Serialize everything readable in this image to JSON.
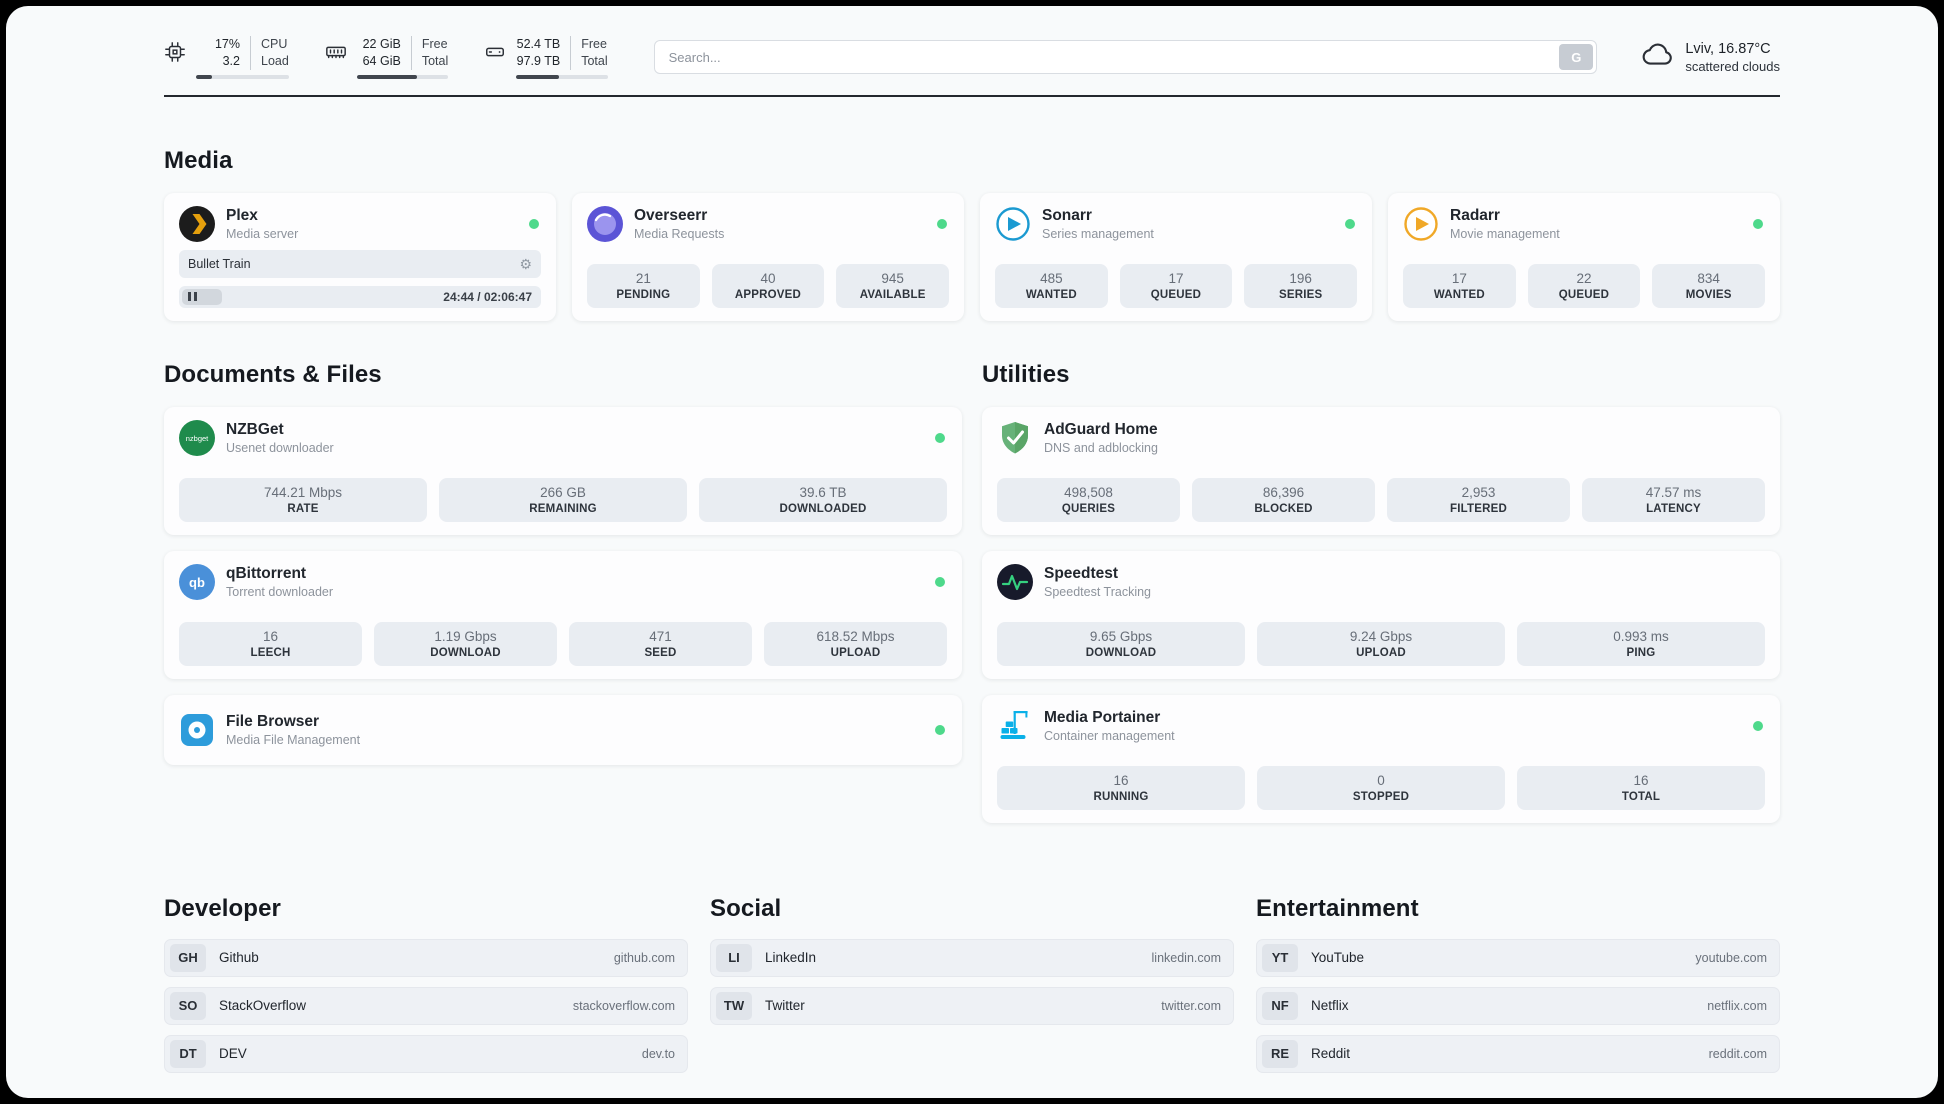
{
  "topbar": {
    "cpu": {
      "value": "17%",
      "value2": "3.2",
      "label": "CPU",
      "label2": "Load",
      "progress": 17
    },
    "memory": {
      "value": "22 GiB",
      "value2": "64 GiB",
      "label": "Free",
      "label2": "Total",
      "progress": 66
    },
    "disk": {
      "value": "52.4 TB",
      "value2": "97.9 TB",
      "label": "Free",
      "label2": "Total",
      "progress": 47
    },
    "search": {
      "placeholder": "Search...",
      "engine": "G"
    },
    "weather": {
      "location": "Lviv, 16.87°C",
      "condition": "scattered clouds"
    }
  },
  "sections": {
    "media": {
      "title": "Media",
      "apps": [
        {
          "name": "Plex",
          "desc": "Media server",
          "status": "online",
          "player": {
            "track": "Bullet Train",
            "time": "24:44 / 02:06:47"
          }
        },
        {
          "name": "Overseerr",
          "desc": "Media Requests",
          "status": "online",
          "stats": [
            {
              "value": "21",
              "label": "PENDING"
            },
            {
              "value": "40",
              "label": "APPROVED"
            },
            {
              "value": "945",
              "label": "AVAILABLE"
            }
          ]
        },
        {
          "name": "Sonarr",
          "desc": "Series management",
          "status": "online",
          "stats": [
            {
              "value": "485",
              "label": "WANTED"
            },
            {
              "value": "17",
              "label": "QUEUED"
            },
            {
              "value": "196",
              "label": "SERIES"
            }
          ]
        },
        {
          "name": "Radarr",
          "desc": "Movie management",
          "status": "online",
          "stats": [
            {
              "value": "17",
              "label": "WANTED"
            },
            {
              "value": "22",
              "label": "QUEUED"
            },
            {
              "value": "834",
              "label": "MOVIES"
            }
          ]
        }
      ]
    },
    "documents": {
      "title": "Documents & Files",
      "apps": [
        {
          "name": "NZBGet",
          "desc": "Usenet downloader",
          "status": "online",
          "stats": [
            {
              "value": "744.21 Mbps",
              "label": "RATE"
            },
            {
              "value": "266 GB",
              "label": "REMAINING"
            },
            {
              "value": "39.6 TB",
              "label": "DOWNLOADED"
            }
          ]
        },
        {
          "name": "qBittorrent",
          "desc": "Torrent downloader",
          "status": "online",
          "stats": [
            {
              "value": "16",
              "label": "LEECH"
            },
            {
              "value": "1.19 Gbps",
              "label": "DOWNLOAD"
            },
            {
              "value": "471",
              "label": "SEED"
            },
            {
              "value": "618.52 Mbps",
              "label": "UPLOAD"
            }
          ]
        },
        {
          "name": "File Browser",
          "desc": "Media File Management",
          "status": "online",
          "stats": []
        }
      ]
    },
    "utilities": {
      "title": "Utilities",
      "apps": [
        {
          "name": "AdGuard Home",
          "desc": "DNS and adblocking",
          "stats": [
            {
              "value": "498,508",
              "label": "QUERIES"
            },
            {
              "value": "86,396",
              "label": "BLOCKED"
            },
            {
              "value": "2,953",
              "label": "FILTERED"
            },
            {
              "value": "47.57 ms",
              "label": "LATENCY"
            }
          ]
        },
        {
          "name": "Speedtest",
          "desc": "Speedtest Tracking",
          "stats": [
            {
              "value": "9.65 Gbps",
              "label": "DOWNLOAD"
            },
            {
              "value": "9.24 Gbps",
              "label": "UPLOAD"
            },
            {
              "value": "0.993 ms",
              "label": "PING"
            }
          ]
        },
        {
          "name": "Media Portainer",
          "desc": "Container management",
          "status": "online",
          "stats": [
            {
              "value": "16",
              "label": "RUNNING"
            },
            {
              "value": "0",
              "label": "STOPPED"
            },
            {
              "value": "16",
              "label": "TOTAL"
            }
          ]
        }
      ]
    },
    "bookmarks": [
      {
        "title": "Developer",
        "links": [
          {
            "abbr": "GH",
            "name": "Github",
            "url": "github.com"
          },
          {
            "abbr": "SO",
            "name": "StackOverflow",
            "url": "stackoverflow.com"
          },
          {
            "abbr": "DT",
            "name": "DEV",
            "url": "dev.to"
          }
        ]
      },
      {
        "title": "Social",
        "links": [
          {
            "abbr": "LI",
            "name": "LinkedIn",
            "url": "linkedin.com"
          },
          {
            "abbr": "TW",
            "name": "Twitter",
            "url": "twitter.com"
          }
        ]
      },
      {
        "title": "Entertainment",
        "links": [
          {
            "abbr": "YT",
            "name": "YouTube",
            "url": "youtube.com"
          },
          {
            "abbr": "NF",
            "name": "Netflix",
            "url": "netflix.com"
          },
          {
            "abbr": "RE",
            "name": "Reddit",
            "url": "reddit.com"
          }
        ]
      }
    ]
  },
  "colors": {
    "status_online": "#4ed98b",
    "divider": "#24282e",
    "plex": "#e5a00d",
    "overseerr": "#5b54d6",
    "sonarr": "#1b9ad1",
    "radarr": "#f0a827",
    "nzbget": "#1f8b4c",
    "qbittorrent": "#4a90d9",
    "filebrowser": "#2d9cdb",
    "adguard": "#67b279",
    "speedtest_pulse": "#35d07f",
    "portainer": "#0ab0e8"
  }
}
